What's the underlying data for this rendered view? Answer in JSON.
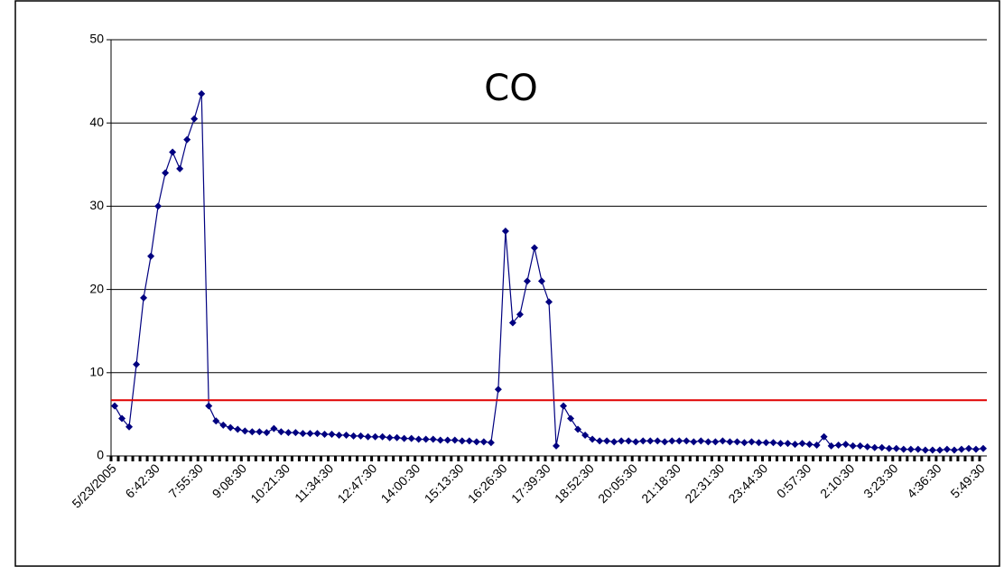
{
  "chart_data": {
    "type": "line",
    "title": "CO",
    "categories": [
      "5/23/2005",
      null,
      null,
      null,
      null,
      null,
      "6:42:30",
      null,
      null,
      null,
      null,
      null,
      "7:55:30",
      null,
      null,
      null,
      null,
      null,
      "9:08:30",
      null,
      null,
      null,
      null,
      null,
      "10:21:30",
      null,
      null,
      null,
      null,
      null,
      "11:34:30",
      null,
      null,
      null,
      null,
      null,
      "12:47:30",
      null,
      null,
      null,
      null,
      null,
      "14:00:30",
      null,
      null,
      null,
      null,
      null,
      "15:13:30",
      null,
      null,
      null,
      null,
      null,
      "16:26:30",
      null,
      null,
      null,
      null,
      null,
      "17:39:30",
      null,
      null,
      null,
      null,
      null,
      "18:52:30",
      null,
      null,
      null,
      null,
      null,
      "20:05:30",
      null,
      null,
      null,
      null,
      null,
      "21:18:30",
      null,
      null,
      null,
      null,
      null,
      "22:31:30",
      null,
      null,
      null,
      null,
      null,
      "23:44:30",
      null,
      null,
      null,
      null,
      null,
      "0:57:30",
      null,
      null,
      null,
      null,
      null,
      "2:10:30",
      null,
      null,
      null,
      null,
      null,
      "3:23:30",
      null,
      null,
      null,
      null,
      null,
      "4:36:30",
      null,
      null,
      null,
      null,
      null,
      "5:49:30"
    ],
    "values": [
      6,
      4.5,
      3.5,
      11,
      19,
      24,
      30,
      34,
      36.5,
      34.5,
      38,
      40.5,
      43.5,
      6,
      4.2,
      3.7,
      3.4,
      3.2,
      3.0,
      2.9,
      2.9,
      2.8,
      3.3,
      2.9,
      2.8,
      2.8,
      2.7,
      2.7,
      2.7,
      2.6,
      2.6,
      2.5,
      2.5,
      2.4,
      2.4,
      2.3,
      2.3,
      2.3,
      2.2,
      2.2,
      2.1,
      2.1,
      2.0,
      2.0,
      2.0,
      1.9,
      1.9,
      1.9,
      1.8,
      1.8,
      1.7,
      1.7,
      1.6,
      8,
      27,
      16,
      17,
      21,
      25,
      21,
      18.5,
      1.2,
      6,
      4.5,
      3.2,
      2.5,
      2.0,
      1.8,
      1.8,
      1.7,
      1.8,
      1.8,
      1.7,
      1.8,
      1.8,
      1.8,
      1.7,
      1.8,
      1.8,
      1.8,
      1.7,
      1.8,
      1.7,
      1.7,
      1.8,
      1.7,
      1.7,
      1.6,
      1.7,
      1.6,
      1.6,
      1.6,
      1.5,
      1.5,
      1.4,
      1.5,
      1.4,
      1.3,
      2.3,
      1.2,
      1.3,
      1.4,
      1.2,
      1.2,
      1.1,
      1.0,
      1.0,
      0.9,
      0.9,
      0.8,
      0.8,
      0.8,
      0.7,
      0.7,
      0.7,
      0.8,
      0.7,
      0.8,
      0.9,
      0.8,
      0.9
    ],
    "color": "#000080",
    "hlines": [
      {
        "value": 6.7,
        "color": "#e00000"
      }
    ],
    "ylim": [
      0,
      50
    ],
    "yticks": [
      0,
      10,
      20,
      30,
      40,
      50
    ],
    "grid": true
  }
}
